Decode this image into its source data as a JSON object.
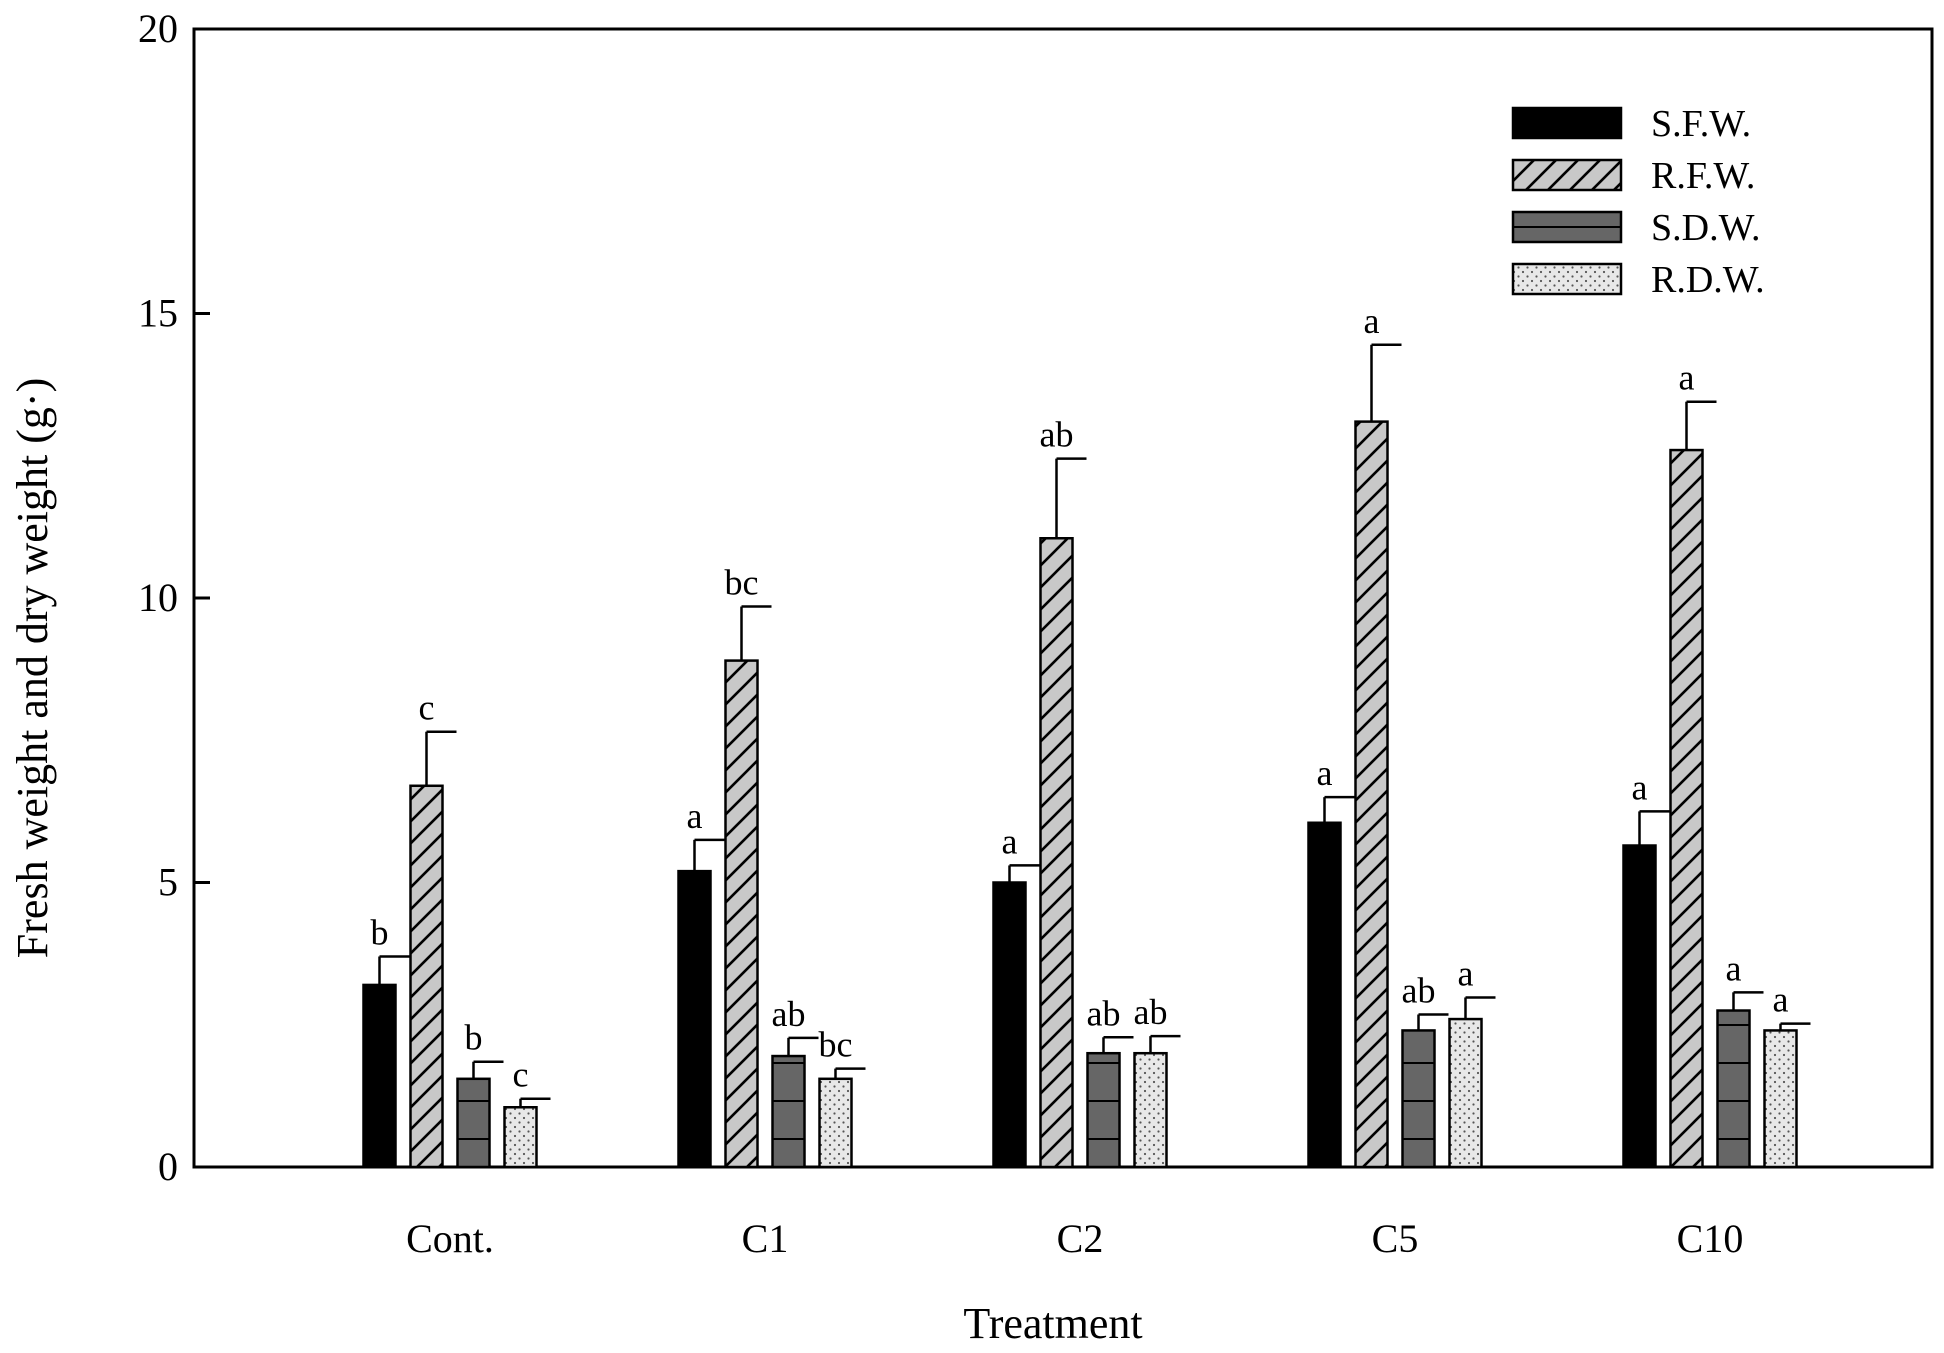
{
  "chart_data": {
    "type": "bar",
    "xlabel": "Treatment",
    "ylabel": "Fresh weight and dry weight (g·)",
    "ylim": [
      0,
      20
    ],
    "yticks": [
      0,
      5,
      10,
      15,
      20
    ],
    "categories": [
      "Cont.",
      "C1",
      "C2",
      "C5",
      "C10"
    ],
    "legend_position": "top-right",
    "series": [
      {
        "name": "S.F.W.",
        "pattern": "solid",
        "color": "#000000",
        "values": [
          3.2,
          5.2,
          5.0,
          6.05,
          5.65
        ],
        "errors": [
          0.5,
          0.55,
          0.3,
          0.45,
          0.6
        ],
        "letters": [
          "b",
          "a",
          "a",
          "a",
          "a"
        ]
      },
      {
        "name": "R.F.W.",
        "pattern": "hatch",
        "color": "#c8c8c8",
        "values": [
          6.7,
          8.9,
          11.05,
          13.1,
          12.6
        ],
        "errors": [
          0.95,
          0.95,
          1.4,
          1.35,
          0.85
        ],
        "letters": [
          "c",
          "bc",
          "ab",
          "a",
          "a"
        ]
      },
      {
        "name": "S.D.W.",
        "pattern": "grid",
        "color": "#666666",
        "values": [
          1.55,
          1.95,
          2.0,
          2.4,
          2.75
        ],
        "errors": [
          0.3,
          0.32,
          0.28,
          0.28,
          0.32
        ],
        "letters": [
          "b",
          "ab",
          "ab",
          "ab",
          "a"
        ]
      },
      {
        "name": "R.D.W.",
        "pattern": "dots",
        "color": "#e6e6e6",
        "values": [
          1.05,
          1.55,
          2.0,
          2.6,
          2.4
        ],
        "errors": [
          0.15,
          0.18,
          0.3,
          0.38,
          0.12
        ],
        "letters": [
          "c",
          "bc",
          "ab",
          "a",
          "a"
        ]
      }
    ]
  }
}
